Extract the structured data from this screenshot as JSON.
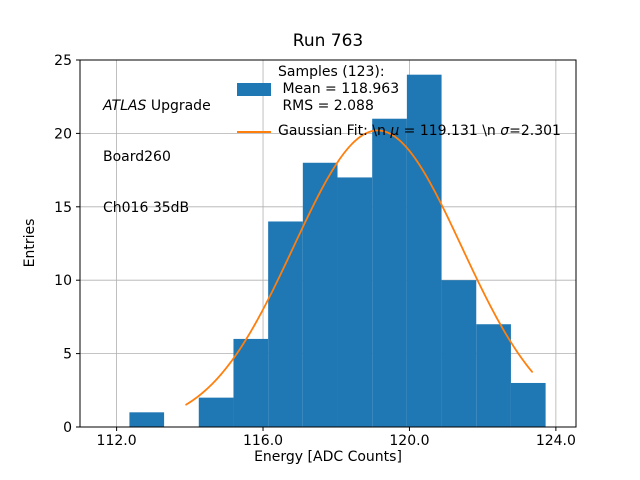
{
  "figure": {
    "background": "#ffffff"
  },
  "chart_data": {
    "type": "histogram",
    "title": "Run 763",
    "xlabel": "Energy [ADC Counts]",
    "ylabel": "Entries",
    "xlim": [
      111.0,
      124.55
    ],
    "ylim": [
      0,
      25
    ],
    "xticks": [
      112.0,
      116.0,
      120.0,
      124.0
    ],
    "xtick_labels": [
      "112.0",
      "116.0",
      "120.0",
      "124.0"
    ],
    "yticks": [
      0,
      5,
      10,
      15,
      20,
      25
    ],
    "ytick_labels": [
      "0",
      "5",
      "10",
      "15",
      "20",
      "25"
    ],
    "grid": true,
    "grid_color": "#b0b0b0",
    "axis_color": "#000000",
    "bar_color": "#1f77b4",
    "fit_color": "#ff7f0e",
    "bins": {
      "start": 112.35,
      "width": 0.9475,
      "counts": [
        1,
        0,
        2,
        6,
        14,
        18,
        17,
        21,
        24,
        10,
        7,
        3
      ]
    },
    "gaussian": {
      "amplitude": 20.2,
      "mu": 119.131,
      "sigma": 2.301,
      "x_start": 113.9,
      "x_end": 123.35
    },
    "stats": {
      "samples": 123,
      "mean": 118.963,
      "rms": 2.088,
      "fit_mu": 119.131,
      "fit_sigma": 2.301
    },
    "annotation": {
      "line1_italic": "ATLAS",
      "line1_rest": " Upgrade",
      "line2": "Board260",
      "line3": "Ch016 35dB"
    },
    "legend": {
      "entry1_line1": "Samples (123):",
      "entry1_line2": " Mean = 118.963",
      "entry1_line3": " RMS = 2.088",
      "entry2_prefix": "Gaussian Fit: \\n ",
      "entry2_mu": "μ",
      "entry2_mid": " = 119.131 \\n ",
      "entry2_sigma": "σ",
      "entry2_suffix": "=2.301"
    }
  }
}
